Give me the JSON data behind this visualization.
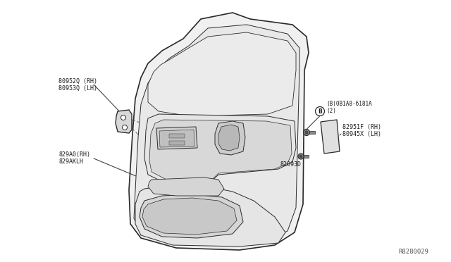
{
  "bg_color": "#ffffff",
  "diagram_id": "R8280029",
  "labels": {
    "top_left_line1": "80952Q (RH)",
    "top_left_line2": "80953Q (LH)",
    "bottom_left_line1": "829A0(RH)",
    "bottom_left_line2": "829AKLH",
    "bolt_label_line1": "(B)0B1A8-6181A",
    "bolt_label_line2": "(2)",
    "right_panel_line1": "82951F (RH)",
    "right_panel_line2": "80945X (LH)",
    "lower_bolt_label": "82093D"
  },
  "colors": {
    "outline": "#2a2a2a",
    "dashed": "#555555",
    "text": "#1a1a1a",
    "bg": "#ffffff",
    "door_fill": "#f0f0f0",
    "inner_fill": "#e8e8e8",
    "panel_fill": "#e0e0e0"
  }
}
